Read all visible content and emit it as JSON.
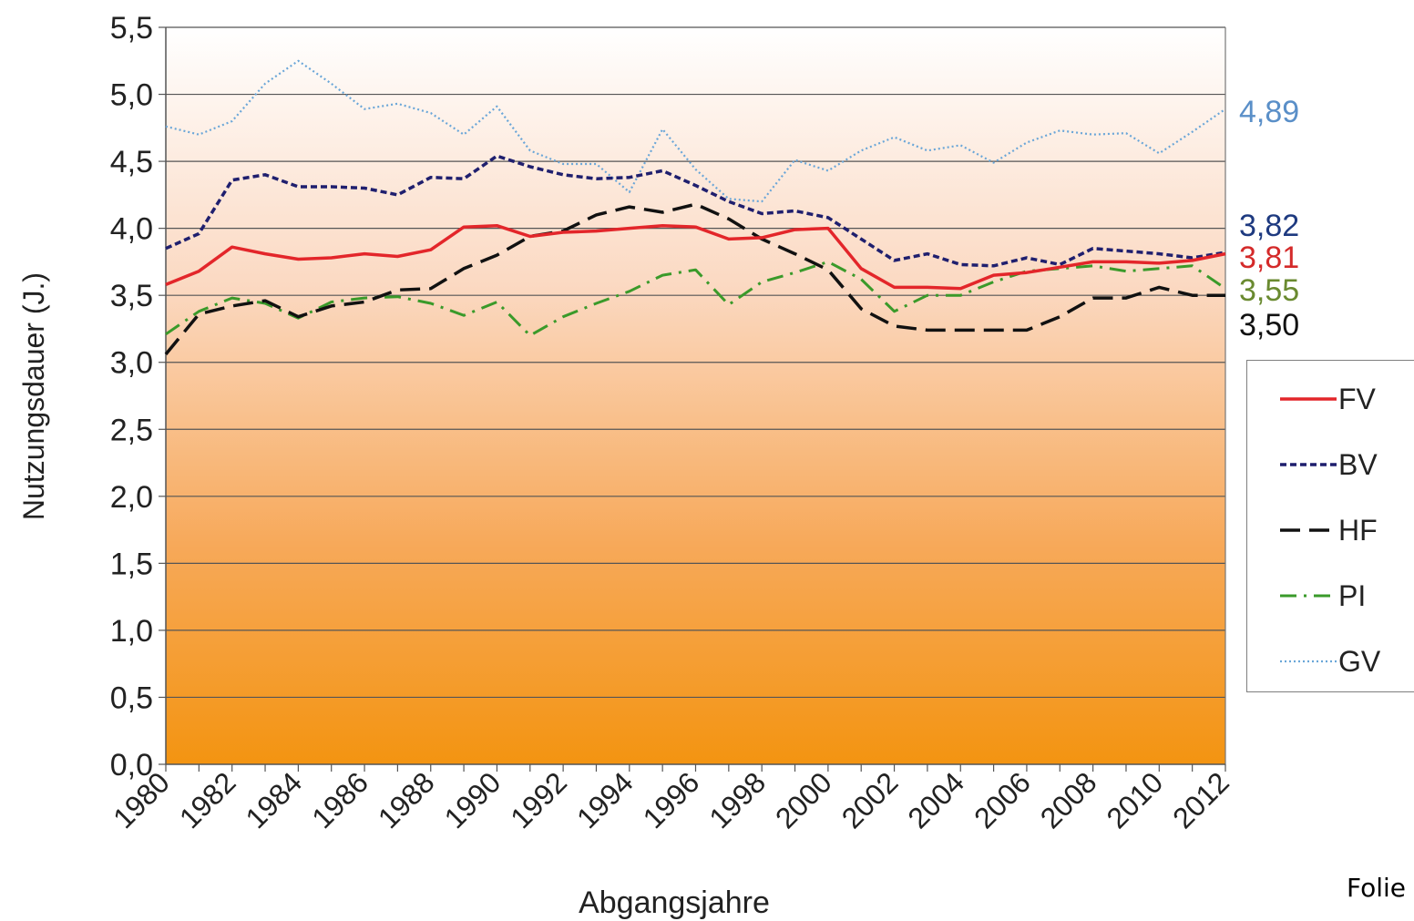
{
  "chart_data": {
    "type": "line",
    "title": "",
    "xlabel": "Abgangsjahre",
    "ylabel": "Nutzungsdauer (J.)",
    "ylim": [
      0,
      5.5
    ],
    "y_ticks": [
      "0,0",
      "0,5",
      "1,0",
      "1,5",
      "2,0",
      "2,5",
      "3,0",
      "3,5",
      "4,0",
      "4,5",
      "5,0",
      "5,5"
    ],
    "x_tick_labels": [
      "1980",
      "1982",
      "1984",
      "1986",
      "1988",
      "1990",
      "1992",
      "1994",
      "1996",
      "1998",
      "2000",
      "2002",
      "2004",
      "2006",
      "2008",
      "2010",
      "2012"
    ],
    "x": [
      1980,
      1981,
      1982,
      1983,
      1984,
      1985,
      1986,
      1987,
      1988,
      1989,
      1990,
      1991,
      1992,
      1993,
      1994,
      1995,
      1996,
      1997,
      1998,
      1999,
      2000,
      2001,
      2002,
      2003,
      2004,
      2005,
      2006,
      2007,
      2008,
      2009,
      2010,
      2011,
      2012
    ],
    "grid": true,
    "legend_position": "right",
    "series": [
      {
        "name": "FV",
        "color": "#e3262a",
        "dash": "solid",
        "end_label": "3,81",
        "values": [
          3.58,
          3.68,
          3.86,
          3.81,
          3.77,
          3.78,
          3.81,
          3.79,
          3.84,
          4.01,
          4.02,
          3.94,
          3.97,
          3.98,
          4.0,
          4.02,
          4.01,
          3.92,
          3.93,
          3.99,
          4.0,
          3.7,
          3.56,
          3.56,
          3.55,
          3.65,
          3.67,
          3.71,
          3.75,
          3.75,
          3.74,
          3.76,
          3.81
        ]
      },
      {
        "name": "BV",
        "color": "#1f1f6e",
        "dash": "short",
        "end_label": "3,82",
        "values": [
          3.85,
          3.96,
          4.36,
          4.4,
          4.31,
          4.31,
          4.3,
          4.25,
          4.38,
          4.37,
          4.54,
          4.46,
          4.4,
          4.37,
          4.38,
          4.43,
          4.32,
          4.2,
          4.11,
          4.13,
          4.08,
          3.92,
          3.76,
          3.81,
          3.73,
          3.72,
          3.78,
          3.73,
          3.85,
          3.83,
          3.81,
          3.78,
          3.82
        ]
      },
      {
        "name": "HF",
        "color": "#111111",
        "dash": "long",
        "end_label": "3,50",
        "values": [
          3.06,
          3.36,
          3.42,
          3.46,
          3.34,
          3.42,
          3.45,
          3.54,
          3.55,
          3.7,
          3.8,
          3.94,
          3.98,
          4.1,
          4.16,
          4.12,
          4.18,
          4.07,
          3.92,
          3.81,
          3.69,
          3.4,
          3.27,
          3.24,
          3.24,
          3.24,
          3.24,
          3.34,
          3.48,
          3.48,
          3.56,
          3.5,
          3.5
        ]
      },
      {
        "name": "PI",
        "color": "#3a9a2a",
        "dash": "dashdot",
        "end_label": "3,55",
        "values": [
          3.21,
          3.38,
          3.48,
          3.44,
          3.33,
          3.45,
          3.48,
          3.49,
          3.44,
          3.35,
          3.45,
          3.2,
          3.34,
          3.44,
          3.53,
          3.65,
          3.69,
          3.43,
          3.6,
          3.67,
          3.75,
          3.62,
          3.38,
          3.5,
          3.5,
          3.6,
          3.68,
          3.7,
          3.72,
          3.68,
          3.7,
          3.72,
          3.55
        ]
      },
      {
        "name": "GV",
        "color": "#6aa6d8",
        "dash": "dotted",
        "end_label": "4,89",
        "values": [
          4.76,
          4.7,
          4.8,
          5.08,
          5.25,
          5.08,
          4.89,
          4.93,
          4.86,
          4.7,
          4.91,
          4.58,
          4.48,
          4.48,
          4.27,
          4.74,
          4.44,
          4.22,
          4.2,
          4.51,
          4.43,
          4.58,
          4.68,
          4.58,
          4.62,
          4.49,
          4.64,
          4.73,
          4.7,
          4.71,
          4.56,
          4.72,
          4.89
        ]
      }
    ],
    "end_label_colors": {
      "GV": "#5a8fc8",
      "BV": "#1e3a80",
      "FV": "#d42a2a",
      "PI": "#6a8a30",
      "HF": "#111111"
    }
  },
  "footer": {
    "text": "Folie"
  }
}
